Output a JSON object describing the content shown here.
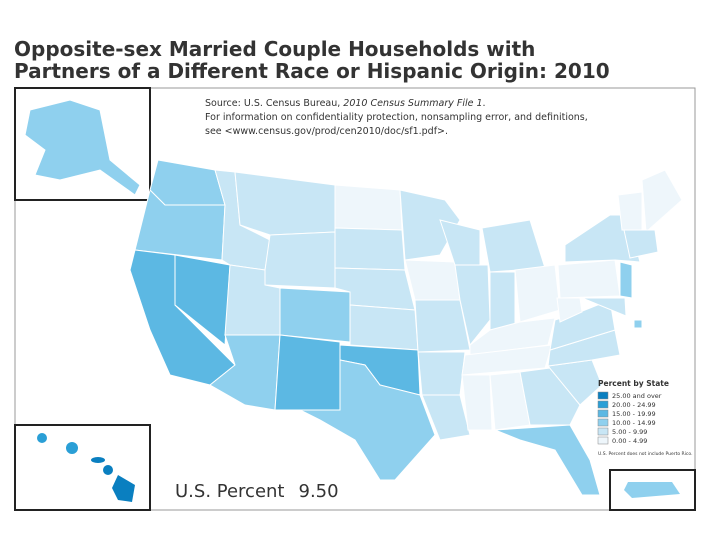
{
  "header": {
    "title_lines": [
      "Opposite-sex Married Couple Households with",
      "Partners of a Different Race or Hispanic Origin: 2010"
    ]
  },
  "source": {
    "prefix": "Source: U.S. Census Bureau, ",
    "italic": "2010 Census Summary File 1",
    "suffix": ".",
    "lines": [
      "For information on confidentiality protection, nonsampling error, and definitions,",
      "see <www.census.gov/prod/cen2010/doc/sf1.pdf>."
    ]
  },
  "legend": {
    "title": "Percent by State",
    "classes": [
      {
        "label": "25.00 and over",
        "color": "#0a7fc0"
      },
      {
        "label": "20.00 - 24.99",
        "color": "#2a9fd6"
      },
      {
        "label": "15.00 - 19.99",
        "color": "#5cb8e3"
      },
      {
        "label": "10.00 - 14.99",
        "color": "#8fd0ee"
      },
      {
        "label": "5.00 - 9.99",
        "color": "#c8e6f5"
      },
      {
        "label": "0.00 - 4.99",
        "color": "#eef6fb"
      }
    ],
    "note": "U.S. Percent does not include Puerto Rico."
  },
  "us_percent": {
    "label": "U.S. Percent",
    "value": "9.50"
  }
}
